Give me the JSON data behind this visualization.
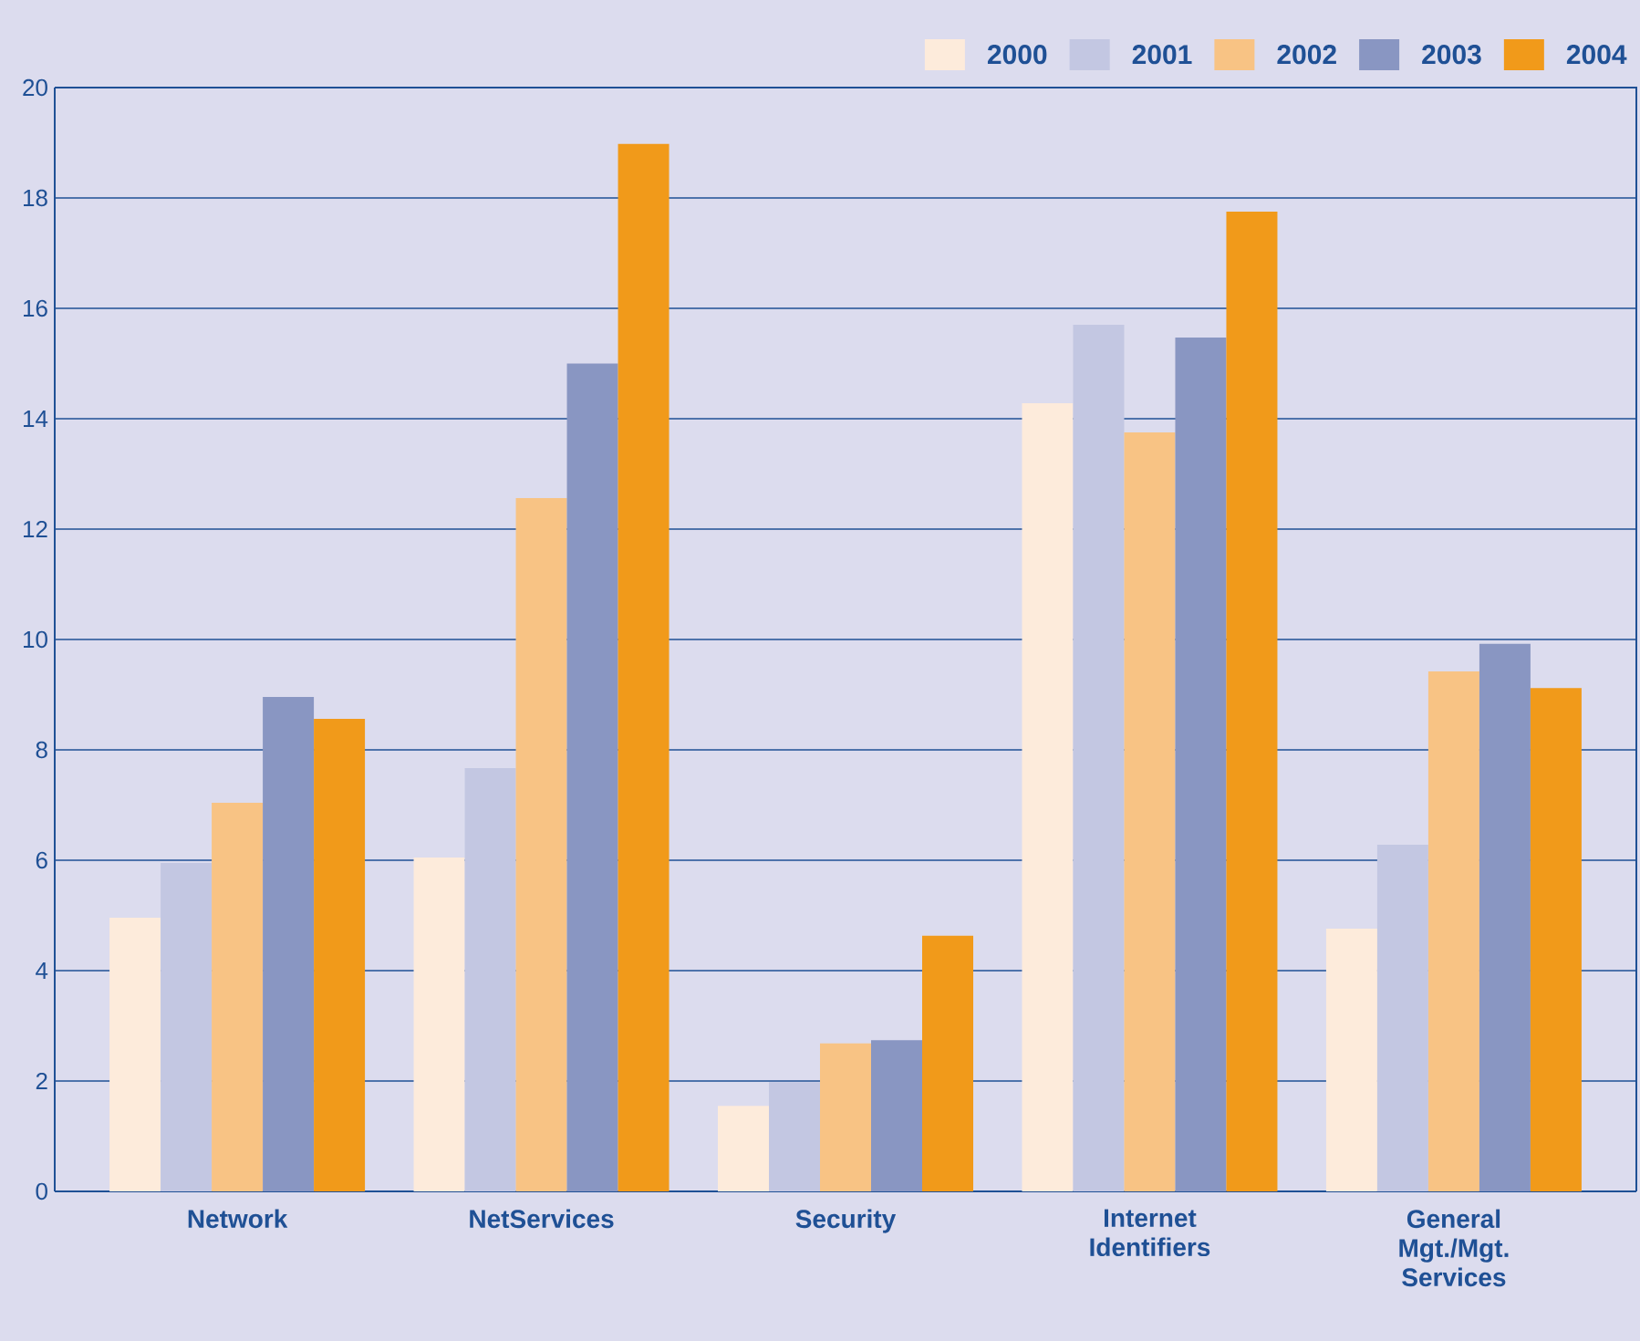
{
  "chart_data": {
    "type": "bar",
    "categories": [
      "Network",
      "NetServices",
      "Security",
      "Internet Identifiers",
      "General Mgt./Mgt. Services"
    ],
    "series": [
      {
        "name": "2000",
        "color": "#fdebdb",
        "values": [
          4.96,
          6.05,
          1.55,
          14.28,
          4.76
        ]
      },
      {
        "name": "2001",
        "color": "#c3c7e2",
        "values": [
          5.95,
          7.67,
          1.98,
          15.7,
          6.28
        ]
      },
      {
        "name": "2002",
        "color": "#f8c384",
        "values": [
          7.04,
          12.56,
          2.68,
          13.75,
          9.42
        ]
      },
      {
        "name": "2003",
        "color": "#8996c2",
        "values": [
          8.96,
          15.0,
          2.74,
          15.47,
          9.92
        ]
      },
      {
        "name": "2004",
        "color": "#f19a1a",
        "values": [
          8.56,
          18.98,
          4.63,
          17.75,
          9.12
        ]
      }
    ],
    "ylim": [
      0,
      20
    ],
    "yticks": [
      0,
      2,
      4,
      6,
      8,
      10,
      12,
      14,
      16,
      18,
      20
    ],
    "grid": "y",
    "legend": "top right"
  }
}
